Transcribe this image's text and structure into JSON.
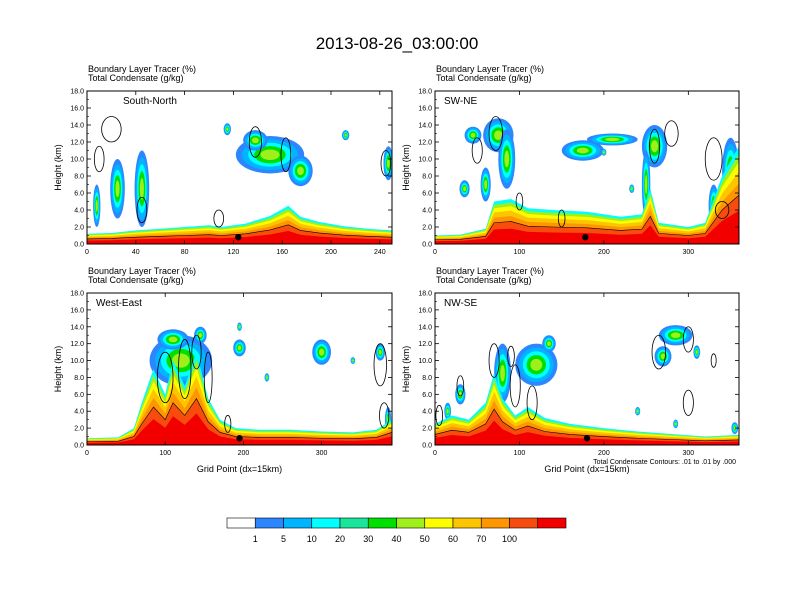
{
  "chart_data": {
    "type": "cross-section",
    "title": "2013-08-26_03:00:00",
    "color_scale": {
      "label_values": [
        "1",
        "5",
        "10",
        "20",
        "30",
        "40",
        "50",
        "60",
        "70",
        "100"
      ],
      "colors": [
        "#ffffff",
        "#2c86ff",
        "#00b4ff",
        "#00ffff",
        "#19e69b",
        "#00e000",
        "#9fef1a",
        "#fdfd00",
        "#fcc500",
        "#fd9600",
        "#f84c0f",
        "#f20000"
      ]
    },
    "panels": [
      {
        "name": "South-North",
        "header_line1": "Boundary Layer Tracer   (%)",
        "header_line2": "Total Condensate   (g/kg)",
        "ylabel": "Height (km)",
        "xlabel": "",
        "xlim": [
          0,
          250
        ],
        "ylim": [
          0,
          18
        ],
        "x_ticks": [
          "0",
          "40",
          "80",
          "120",
          "160",
          "200",
          "240"
        ],
        "y_ticks": [
          "0.0",
          "2.0",
          "4.0",
          "6.0",
          "8.0",
          "10.0",
          "12.0",
          "14.0",
          "16.0",
          "18.0"
        ],
        "location_marker_x": 124,
        "pbl_top": [
          [
            0,
            1.2
          ],
          [
            20,
            1.3
          ],
          [
            40,
            1.6
          ],
          [
            60,
            1.8
          ],
          [
            80,
            2.0
          ],
          [
            100,
            2.2
          ],
          [
            110,
            2.0
          ],
          [
            130,
            2.4
          ],
          [
            150,
            3.3
          ],
          [
            165,
            4.5
          ],
          [
            175,
            3.2
          ],
          [
            190,
            2.6
          ],
          [
            210,
            2.1
          ],
          [
            230,
            1.8
          ],
          [
            250,
            1.6
          ]
        ],
        "cloud_blobs": [
          [
            150,
            10.5,
            28,
            2.2
          ],
          [
            138,
            12.2,
            10,
            1.2
          ],
          [
            175,
            8.6,
            10,
            1.8
          ],
          [
            45,
            6.5,
            6,
            4.5
          ],
          [
            25,
            6.5,
            6,
            3.5
          ],
          [
            247,
            9.5,
            4,
            2.0
          ],
          [
            212,
            12.8,
            3,
            0.6
          ],
          [
            115,
            13.5,
            3,
            0.7
          ],
          [
            8,
            4.5,
            3,
            2.5
          ]
        ],
        "contours": [
          [
            20,
            13.5,
            8,
            1.5
          ],
          [
            10,
            10.0,
            4,
            1.5
          ],
          [
            138,
            12.0,
            5,
            1.8
          ],
          [
            163,
            10.5,
            4,
            2.0
          ],
          [
            108,
            3.0,
            4,
            1.0
          ],
          [
            245,
            9.5,
            4,
            1.5
          ],
          [
            45,
            4.0,
            4,
            1.5
          ]
        ]
      },
      {
        "name": "SW-NE",
        "header_line1": "Boundary Layer Tracer   (%)",
        "header_line2": "Total Condensate   (g/kg)",
        "ylabel": "Height (km)",
        "xlabel": "",
        "xlim": [
          0,
          360
        ],
        "ylim": [
          0,
          18
        ],
        "x_ticks": [
          "0",
          "100",
          "200",
          "300"
        ],
        "y_ticks": [
          "0.0",
          "2.0",
          "4.0",
          "6.0",
          "8.0",
          "10.0",
          "12.0",
          "14.0",
          "16.0",
          "18.0"
        ],
        "location_marker_x": 178,
        "pbl_top": [
          [
            0,
            1.0
          ],
          [
            30,
            1.1
          ],
          [
            60,
            1.8
          ],
          [
            70,
            5.0
          ],
          [
            90,
            5.3
          ],
          [
            110,
            4.2
          ],
          [
            140,
            4.0
          ],
          [
            180,
            3.8
          ],
          [
            220,
            3.2
          ],
          [
            245,
            3.5
          ],
          [
            255,
            6.5
          ],
          [
            265,
            2.5
          ],
          [
            300,
            2.0
          ],
          [
            320,
            2.5
          ],
          [
            340,
            8.0
          ],
          [
            360,
            11.5
          ]
        ],
        "cloud_blobs": [
          [
            75,
            12.8,
            18,
            2.0
          ],
          [
            45,
            12.8,
            10,
            1.0
          ],
          [
            85,
            10.0,
            10,
            3.5
          ],
          [
            60,
            7.0,
            6,
            2.0
          ],
          [
            175,
            11.0,
            25,
            1.2
          ],
          [
            210,
            12.3,
            30,
            0.7
          ],
          [
            260,
            11.5,
            15,
            2.5
          ],
          [
            250,
            7.0,
            5,
            4.0
          ],
          [
            350,
            8.5,
            10,
            4.0
          ],
          [
            330,
            4.5,
            6,
            2.5
          ],
          [
            35,
            6.5,
            6,
            1.0
          ],
          [
            233,
            6.5,
            3,
            0.5
          ],
          [
            200,
            10.8,
            3,
            0.4
          ]
        ],
        "contours": [
          [
            72,
            13.0,
            8,
            2.0
          ],
          [
            260,
            11.5,
            6,
            2.0
          ],
          [
            280,
            13.0,
            8,
            1.5
          ],
          [
            330,
            10.0,
            10,
            2.5
          ],
          [
            340,
            4.0,
            8,
            1.0
          ],
          [
            50,
            11.0,
            6,
            1.5
          ],
          [
            100,
            5.0,
            4,
            1.0
          ],
          [
            150,
            3.0,
            4,
            1.0
          ]
        ]
      },
      {
        "name": "West-East",
        "header_line1": "Boundary Layer Tracer   (%)",
        "header_line2": "Total Condensate   (g/kg)",
        "ylabel": "Height (km)",
        "xlabel": "Grid Point (dx=15km)",
        "xlim": [
          0,
          390
        ],
        "ylim": [
          0,
          18
        ],
        "x_ticks": [
          "0",
          "100",
          "200",
          "300"
        ],
        "y_ticks": [
          "0.0",
          "2.0",
          "4.0",
          "6.0",
          "8.0",
          "10.0",
          "12.0",
          "14.0",
          "16.0",
          "18.0"
        ],
        "location_marker_x": 195,
        "pbl_top": [
          [
            0,
            0.8
          ],
          [
            40,
            0.9
          ],
          [
            60,
            2.0
          ],
          [
            70,
            5.0
          ],
          [
            85,
            9.0
          ],
          [
            100,
            6.0
          ],
          [
            110,
            10.0
          ],
          [
            125,
            7.0
          ],
          [
            140,
            11.0
          ],
          [
            155,
            5.5
          ],
          [
            170,
            3.0
          ],
          [
            190,
            2.0
          ],
          [
            220,
            1.8
          ],
          [
            260,
            1.8
          ],
          [
            300,
            1.6
          ],
          [
            340,
            1.5
          ],
          [
            370,
            1.8
          ],
          [
            390,
            3.0
          ]
        ],
        "cloud_blobs": [
          [
            120,
            10.0,
            40,
            3.0
          ],
          [
            110,
            12.5,
            20,
            1.2
          ],
          [
            145,
            13.0,
            8,
            1.0
          ],
          [
            195,
            11.5,
            8,
            1.0
          ],
          [
            195,
            14.0,
            3,
            0.5
          ],
          [
            300,
            11.0,
            12,
            1.5
          ],
          [
            375,
            11.0,
            6,
            1.0
          ],
          [
            385,
            3.0,
            4,
            1.5
          ],
          [
            230,
            8.0,
            3,
            0.5
          ],
          [
            340,
            10.0,
            3,
            0.4
          ]
        ],
        "contours": [
          [
            100,
            8.0,
            10,
            3.0
          ],
          [
            125,
            9.0,
            8,
            3.5
          ],
          [
            140,
            11.0,
            6,
            2.0
          ],
          [
            155,
            8.0,
            5,
            3.0
          ],
          [
            375,
            9.5,
            8,
            2.5
          ],
          [
            380,
            3.5,
            6,
            1.5
          ],
          [
            180,
            2.5,
            4,
            1.0
          ]
        ]
      },
      {
        "name": "NW-SE",
        "header_line1": "Boundary Layer Tracer   (%)",
        "header_line2": "Total Condensate   (g/kg)",
        "ylabel": "Height (km)",
        "xlabel": "Grid Point (dx=15km)",
        "xlim": [
          0,
          360
        ],
        "ylim": [
          0,
          18
        ],
        "x_ticks": [
          "0",
          "100",
          "200",
          "300"
        ],
        "y_ticks": [
          "0.0",
          "2.0",
          "4.0",
          "6.0",
          "8.0",
          "10.0",
          "12.0",
          "14.0",
          "16.0",
          "18.0"
        ],
        "location_marker_x": 180,
        "pbl_top": [
          [
            0,
            2.5
          ],
          [
            20,
            3.5
          ],
          [
            40,
            3.0
          ],
          [
            60,
            5.0
          ],
          [
            70,
            8.5
          ],
          [
            80,
            5.5
          ],
          [
            95,
            3.5
          ],
          [
            110,
            4.5
          ],
          [
            130,
            3.2
          ],
          [
            160,
            2.5
          ],
          [
            200,
            2.0
          ],
          [
            240,
            1.6
          ],
          [
            280,
            1.3
          ],
          [
            320,
            1.0
          ],
          [
            360,
            1.2
          ]
        ],
        "cloud_blobs": [
          [
            80,
            8.5,
            10,
            3.5
          ],
          [
            120,
            9.5,
            25,
            2.5
          ],
          [
            135,
            12.0,
            8,
            1.0
          ],
          [
            285,
            13.0,
            20,
            1.2
          ],
          [
            270,
            10.5,
            10,
            1.2
          ],
          [
            310,
            11.0,
            4,
            0.8
          ],
          [
            30,
            6.0,
            6,
            1.2
          ],
          [
            15,
            4.0,
            4,
            1.0
          ],
          [
            355,
            2.0,
            4,
            0.7
          ],
          [
            240,
            4.0,
            3,
            0.5
          ],
          [
            285,
            2.5,
            3,
            0.5
          ]
        ],
        "contours": [
          [
            70,
            10.0,
            6,
            2.0
          ],
          [
            95,
            7.0,
            6,
            2.5
          ],
          [
            115,
            5.0,
            6,
            2.0
          ],
          [
            265,
            11.0,
            8,
            2.0
          ],
          [
            300,
            12.5,
            6,
            1.5
          ],
          [
            330,
            10.0,
            3,
            0.8
          ],
          [
            300,
            5.0,
            6,
            1.5
          ],
          [
            5,
            3.5,
            4,
            1.2
          ],
          [
            30,
            7.0,
            4,
            1.2
          ],
          [
            90,
            10.5,
            4,
            1.2
          ]
        ]
      }
    ],
    "note": "Total Condensate Contours: .01 to .01 by .000"
  }
}
